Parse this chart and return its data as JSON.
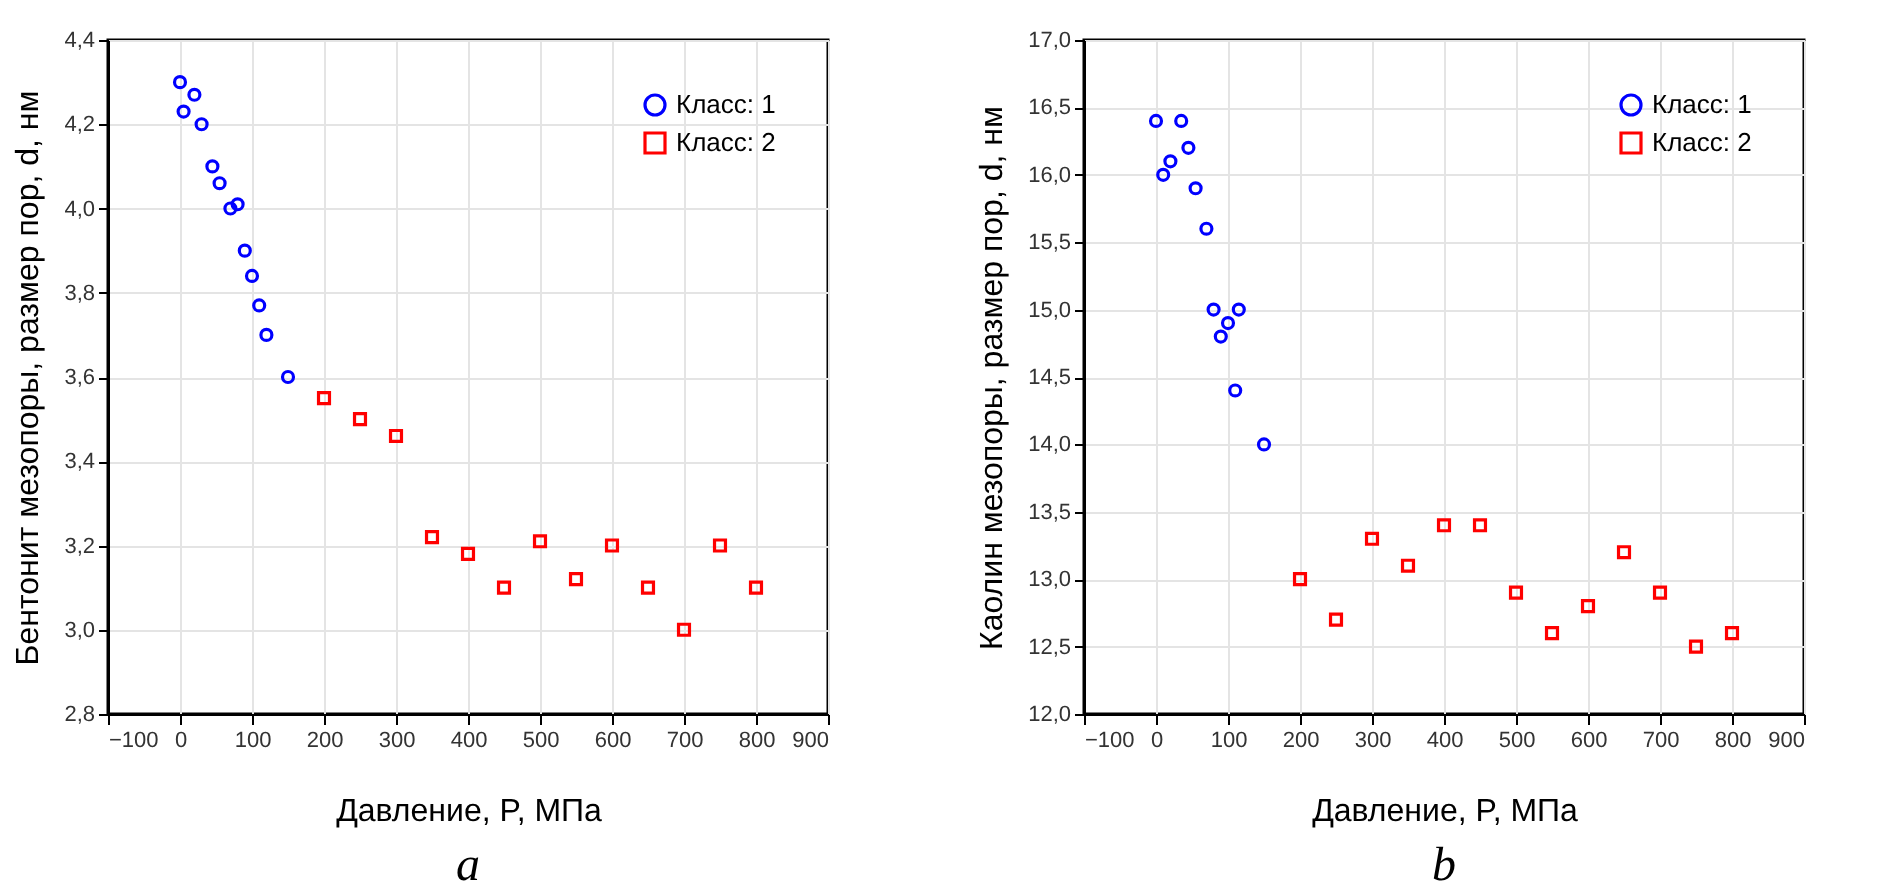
{
  "chart_data": [
    {
      "type": "scatter",
      "xlabel": "Давление, P, МПа",
      "ylabel": "Бентонит мезопоры, размер пор, d, нм",
      "annotations": [
        "a"
      ],
      "legend": "top right",
      "grid": true,
      "xlim": [
        -100,
        900
      ],
      "xticks": [
        -100,
        0,
        100,
        200,
        300,
        400,
        500,
        600,
        700,
        800,
        900
      ],
      "ylim": [
        2.8,
        4.4
      ],
      "yticks": [
        {
          "value": 2.8,
          "label": "2,8"
        },
        {
          "value": 3.0,
          "label": "3,0"
        },
        {
          "value": 3.2,
          "label": "3,2"
        },
        {
          "value": 3.4,
          "label": "3,4"
        },
        {
          "value": 3.6,
          "label": "3,6"
        },
        {
          "value": 3.8,
          "label": "3,8"
        },
        {
          "value": 4.0,
          "label": "4,0"
        },
        {
          "value": 4.2,
          "label": "4,2"
        },
        {
          "value": 4.4,
          "label": "4,4"
        }
      ],
      "series": [
        {
          "name": "Класс: 1",
          "color": "#0000ff",
          "marker": "circle",
          "x": [
            0,
            5,
            20,
            30,
            45,
            55,
            70,
            80,
            90,
            100,
            110,
            120,
            150
          ],
          "values": [
            4.3,
            4.23,
            4.27,
            4.2,
            4.1,
            4.06,
            4.0,
            4.01,
            3.9,
            3.84,
            3.77,
            3.7,
            3.6
          ]
        },
        {
          "name": "Класс: 2",
          "color": "#ff0000",
          "marker": "square",
          "x": [
            200,
            250,
            300,
            350,
            400,
            450,
            500,
            550,
            600,
            650,
            700,
            750,
            800
          ],
          "values": [
            3.55,
            3.5,
            3.46,
            3.22,
            3.18,
            3.1,
            3.21,
            3.12,
            3.2,
            3.1,
            3.0,
            3.2,
            3.1
          ]
        }
      ]
    },
    {
      "type": "scatter",
      "xlabel": "Давление, P, МПа",
      "ylabel": "Каолин мезопоры, размер пор, d, нм",
      "annotations": [
        "b"
      ],
      "legend": "top right",
      "grid": true,
      "xlim": [
        -100,
        900
      ],
      "xticks": [
        -100,
        0,
        100,
        200,
        300,
        400,
        500,
        600,
        700,
        800,
        900
      ],
      "ylim": [
        12.0,
        17.0
      ],
      "yticks": [
        {
          "value": 12.0,
          "label": "12,0"
        },
        {
          "value": 12.5,
          "label": "12,5"
        },
        {
          "value": 13.0,
          "label": "13,0"
        },
        {
          "value": 13.5,
          "label": "13,5"
        },
        {
          "value": 14.0,
          "label": "14,0"
        },
        {
          "value": 14.5,
          "label": "14,5"
        },
        {
          "value": 15.0,
          "label": "15,0"
        },
        {
          "value": 15.5,
          "label": "15,5"
        },
        {
          "value": 16.0,
          "label": "16,0"
        },
        {
          "value": 16.5,
          "label": "16,5"
        },
        {
          "value": 17.0,
          "label": "17,0"
        }
      ],
      "series": [
        {
          "name": "Класс: 1",
          "color": "#0000ff",
          "marker": "circle",
          "x": [
            0,
            10,
            20,
            35,
            45,
            55,
            70,
            80,
            90,
            100,
            115,
            110,
            150
          ],
          "values": [
            16.4,
            16.0,
            16.1,
            16.4,
            16.2,
            15.9,
            15.6,
            15.0,
            14.8,
            14.9,
            15.0,
            14.4,
            14.0
          ]
        },
        {
          "name": "Класс: 2",
          "color": "#ff0000",
          "marker": "square",
          "x": [
            200,
            250,
            300,
            350,
            400,
            450,
            500,
            550,
            600,
            650,
            700,
            750,
            800
          ],
          "values": [
            13.0,
            12.7,
            13.3,
            13.1,
            13.4,
            13.4,
            12.9,
            12.6,
            12.8,
            13.2,
            12.9,
            12.5,
            12.6
          ]
        }
      ]
    }
  ]
}
